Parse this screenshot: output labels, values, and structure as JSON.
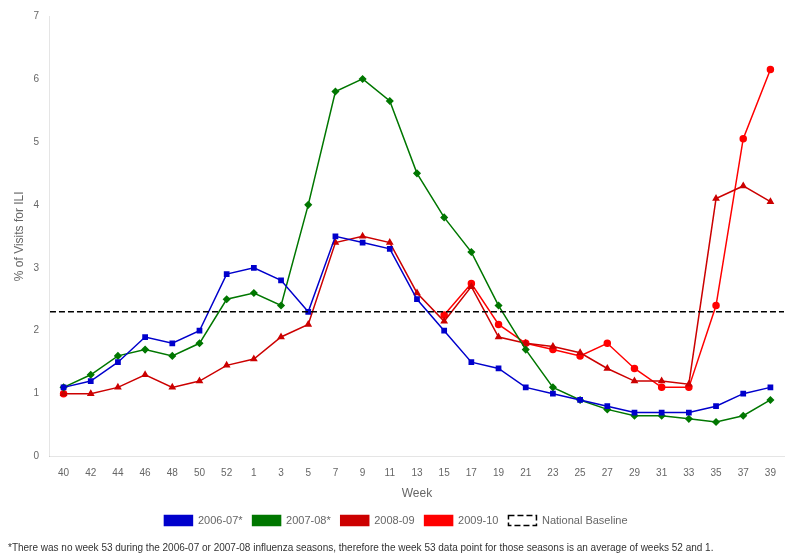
{
  "chart_data": {
    "type": "line",
    "xlabel": "Week",
    "ylabel": "% of Visits for ILI",
    "categories": [
      "40",
      "42",
      "44",
      "46",
      "48",
      "50",
      "52",
      "1",
      "3",
      "5",
      "7",
      "9",
      "11",
      "13",
      "15",
      "17",
      "19",
      "21",
      "23",
      "25",
      "27",
      "29",
      "31",
      "33",
      "35",
      "37",
      "39"
    ],
    "series": [
      {
        "name": "2006-07*",
        "color": "#0000CC",
        "marker": "square",
        "values": [
          1.1,
          1.2,
          1.5,
          1.9,
          1.8,
          2.0,
          2.9,
          3.0,
          2.8,
          2.3,
          3.5,
          3.4,
          3.3,
          2.5,
          2.0,
          1.5,
          1.4,
          1.1,
          1.0,
          0.9,
          0.8,
          0.7,
          0.7,
          0.7,
          0.8,
          1.0,
          1.1
        ]
      },
      {
        "name": "2007-08*",
        "color": "#007700",
        "marker": "diamond",
        "values": [
          1.1,
          1.3,
          1.6,
          1.7,
          1.6,
          1.8,
          2.5,
          2.6,
          2.4,
          4.0,
          5.8,
          6.0,
          5.65,
          4.5,
          3.8,
          3.25,
          2.4,
          1.7,
          1.1,
          0.9,
          0.75,
          0.65,
          0.65,
          0.6,
          0.55,
          0.65,
          0.9
        ]
      },
      {
        "name": "2008-09",
        "color": "#CC0000",
        "marker": "triangle",
        "values": [
          1.0,
          1.0,
          1.1,
          1.3,
          1.1,
          1.2,
          1.45,
          1.55,
          1.9,
          2.1,
          3.4,
          3.5,
          3.4,
          2.6,
          2.15,
          2.7,
          1.9,
          1.8,
          1.75,
          1.65,
          1.4,
          1.2,
          1.2,
          1.15,
          4.1,
          4.3,
          4.05
        ]
      },
      {
        "name": "2009-10",
        "color": "#FF0000",
        "marker": "circle",
        "values": [
          1.0,
          null,
          null,
          null,
          null,
          null,
          null,
          null,
          null,
          null,
          null,
          null,
          null,
          null,
          2.25,
          2.75,
          2.1,
          1.8,
          1.7,
          1.6,
          1.8,
          1.4,
          1.1,
          1.1,
          2.4,
          5.05,
          6.15
        ]
      }
    ],
    "reference_lines": [
      {
        "name": "National Baseline",
        "value": 2.3,
        "color": "#000000",
        "line_style": "dashed"
      }
    ],
    "annotations": [
      "*There was no week 53 during the 2006-07 or 2007-08 influenza seasons, therefore the week 53 data point for those seasons is an average of weeks 52 and 1."
    ],
    "ylim": [
      0,
      7
    ],
    "yticks": [
      0,
      1,
      2,
      3,
      4,
      5,
      6,
      7
    ],
    "grid": false,
    "legend": "bottom"
  }
}
